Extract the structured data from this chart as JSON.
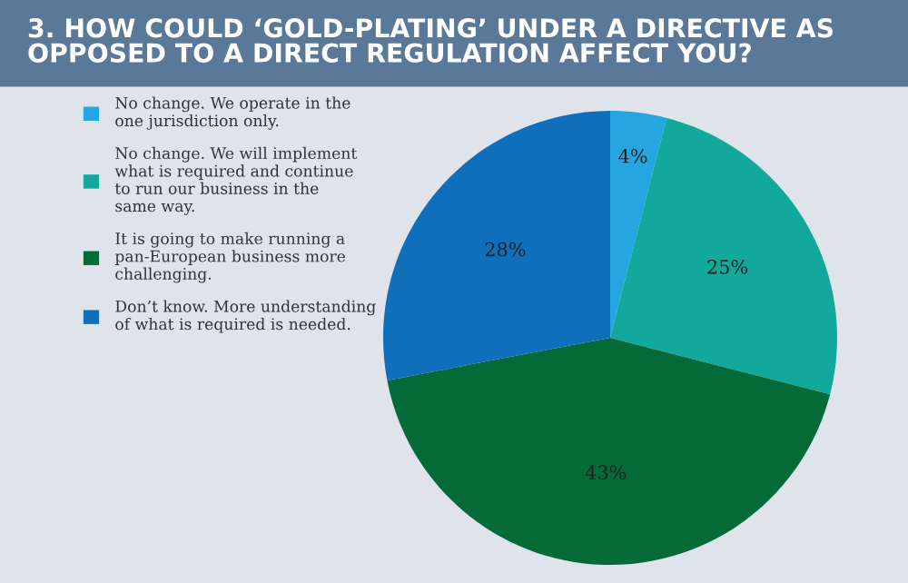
{
  "chart_data": {
    "type": "pie",
    "title": "3. HOW COULD ‘GOLD-PLATING’ UNDER A DIRECTIVE AS\nOPPOSED TO A DIRECT REGULATION AFFECT YOU?",
    "categories": [
      "No change. We operate in the\none jurisdiction only.",
      "No change. We will implement\nwhat is required and continue\nto run our business in the\nsame way.",
      "It is going to make running a\npan-European business more\nchallenging.",
      "Don’t know. More understanding\nof what is required is needed."
    ],
    "values": [
      4,
      25,
      43,
      28
    ],
    "colors": [
      "#25a6e0",
      "#13a89c",
      "#046a38",
      "#0f6fba"
    ],
    "value_labels": [
      "4%",
      "25%",
      "43%",
      "28%"
    ],
    "legend": "left"
  }
}
